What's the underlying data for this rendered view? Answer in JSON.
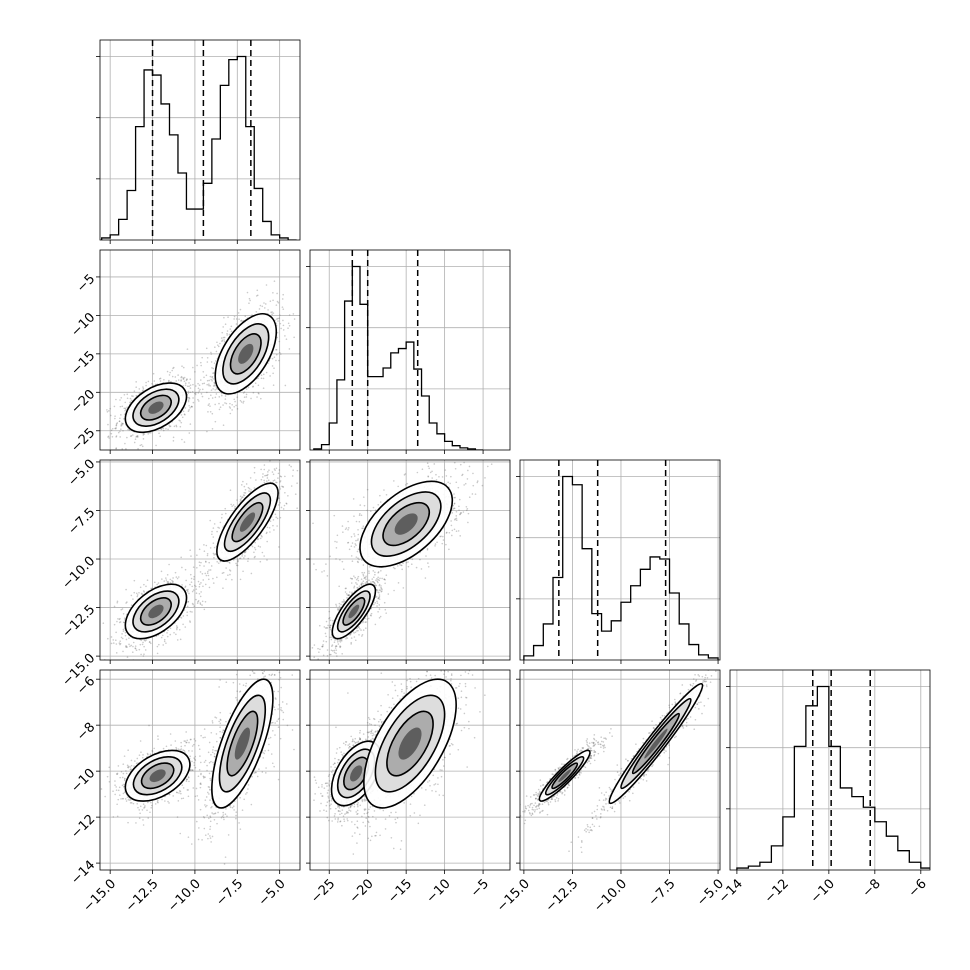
{
  "chart_data": {
    "type": "corner",
    "params": [
      {
        "id": "p0",
        "range": [
          -15.6,
          -3.8
        ],
        "ticks": [
          -15.0,
          -12.5,
          -10.0,
          -7.5,
          -5.0
        ],
        "tick_labels": [
          "−15.0",
          "−12.5",
          "−10.0",
          "−7.5",
          "−5.0"
        ]
      },
      {
        "id": "p1",
        "range": [
          -27.5,
          -1.5
        ],
        "ticks": [
          -25,
          -20,
          -15,
          -10,
          -5
        ],
        "tick_labels": [
          "−25",
          "−20",
          "−15",
          "−10",
          "−5"
        ]
      },
      {
        "id": "p2",
        "range": [
          -15.2,
          -4.9
        ],
        "ticks": [
          -15.0,
          -12.5,
          -10.0,
          -7.5,
          -5.0
        ],
        "tick_labels": [
          "−15.0",
          "−12.5",
          "−10.0",
          "−7.5",
          "−5.0"
        ]
      },
      {
        "id": "p3",
        "range": [
          -14.3,
          -5.6
        ],
        "ticks": [
          -14,
          -12,
          -10,
          -8,
          -6
        ],
        "tick_labels": [
          "−14",
          "−12",
          "−10",
          "−8",
          "−6"
        ]
      }
    ],
    "grid": true,
    "histograms": [
      {
        "param": 0,
        "bin_edges": [
          -15.5,
          -15.0,
          -14.5,
          -14.0,
          -13.5,
          -13.0,
          -12.5,
          -12.0,
          -11.5,
          -11.0,
          -10.5,
          -10.0,
          -9.5,
          -9.0,
          -8.5,
          -8.0,
          -7.5,
          -7.0,
          -6.5,
          -6.0,
          -5.5,
          -5.0,
          -4.5,
          -4.0
        ],
        "counts": [
          2,
          5,
          20,
          48,
          110,
          165,
          160,
          132,
          102,
          65,
          30,
          30,
          55,
          98,
          150,
          175,
          178,
          110,
          50,
          18,
          5,
          2,
          0
        ],
        "quantiles": [
          -12.5,
          -9.5,
          -6.7
        ]
      },
      {
        "param": 1,
        "bin_edges": [
          -27.0,
          -26.0,
          -25.0,
          -24.0,
          -23.0,
          -22.0,
          -21.0,
          -20.0,
          -19.0,
          -18.0,
          -17.0,
          -16.0,
          -15.0,
          -14.0,
          -13.0,
          -12.0,
          -11.0,
          -10.0,
          -9.0,
          -8.0,
          -7.0,
          -6.0,
          -5.0
        ],
        "counts": [
          1,
          5,
          25,
          65,
          138,
          170,
          135,
          68,
          68,
          76,
          90,
          94,
          100,
          75,
          50,
          25,
          15,
          8,
          4,
          2,
          1,
          0
        ],
        "quantiles": [
          -22.0,
          -20.0,
          -13.5
        ]
      },
      {
        "param": 2,
        "bin_edges": [
          -15.0,
          -14.5,
          -14.0,
          -13.5,
          -13.0,
          -12.5,
          -12.0,
          -11.5,
          -11.0,
          -10.5,
          -10.0,
          -9.5,
          -9.0,
          -8.5,
          -8.0,
          -7.5,
          -7.0,
          -6.5,
          -6.0,
          -5.5,
          -5.0
        ],
        "counts": [
          4,
          14,
          35,
          80,
          178,
          170,
          108,
          45,
          28,
          38,
          56,
          72,
          88,
          100,
          98,
          65,
          35,
          15,
          5,
          2
        ],
        "quantiles": [
          -13.2,
          -11.2,
          -7.7
        ]
      },
      {
        "param": 3,
        "bin_edges": [
          -14.0,
          -13.5,
          -13.0,
          -12.5,
          -12.0,
          -11.5,
          -11.0,
          -10.5,
          -10.0,
          -9.5,
          -9.0,
          -8.5,
          -8.0,
          -7.5,
          -7.0,
          -6.5,
          -6.0,
          -5.5
        ],
        "counts": [
          2,
          4,
          8,
          25,
          55,
          128,
          170,
          190,
          128,
          85,
          76,
          65,
          50,
          35,
          20,
          8,
          2
        ],
        "quantiles": [
          -10.7,
          -9.9,
          -8.2
        ]
      }
    ],
    "pairs": [
      {
        "x": 0,
        "y": 1,
        "modes": [
          {
            "c": [
              -12.3,
              -22.0
            ],
            "s": [
              0.9,
              1.6
            ],
            "r": 0.45,
            "w": 0.5
          },
          {
            "c": [
              -7.0,
              -15.0
            ],
            "s": [
              0.9,
              2.6
            ],
            "r": 0.55,
            "w": 0.5
          }
        ]
      },
      {
        "x": 0,
        "y": 2,
        "modes": [
          {
            "c": [
              -12.3,
              -12.7
            ],
            "s": [
              0.9,
              0.7
            ],
            "r": 0.5,
            "w": 0.5
          },
          {
            "c": [
              -6.9,
              -8.1
            ],
            "s": [
              0.9,
              1.0
            ],
            "r": 0.75,
            "w": 0.5
          }
        ]
      },
      {
        "x": 1,
        "y": 2,
        "modes": [
          {
            "c": [
              -21.8,
              -12.7
            ],
            "s": [
              1.4,
              0.7
            ],
            "r": 0.75,
            "w": 0.5
          },
          {
            "c": [
              -15.0,
              -8.2
            ],
            "s": [
              3.0,
              1.1
            ],
            "r": 0.55,
            "w": 0.5
          }
        ]
      },
      {
        "x": 0,
        "y": 3,
        "modes": [
          {
            "c": [
              -12.2,
              -10.2
            ],
            "s": [
              0.95,
              0.55
            ],
            "r": 0.45,
            "w": 0.5
          },
          {
            "c": [
              -7.2,
              -8.8
            ],
            "s": [
              0.9,
              1.4
            ],
            "r": 0.7,
            "w": 0.5
          }
        ]
      },
      {
        "x": 1,
        "y": 3,
        "modes": [
          {
            "c": [
              -21.5,
              -10.1
            ],
            "s": [
              1.6,
              0.7
            ],
            "r": 0.5,
            "w": 0.5
          },
          {
            "c": [
              -14.5,
              -8.8
            ],
            "s": [
              3.0,
              1.4
            ],
            "r": 0.6,
            "w": 0.5
          }
        ]
      },
      {
        "x": 2,
        "y": 3,
        "modes": [
          {
            "c": [
              -12.9,
              -10.2
            ],
            "s": [
              0.65,
              0.55
            ],
            "r": 0.92,
            "w": 0.5
          },
          {
            "c": [
              -8.2,
              -8.8
            ],
            "s": [
              1.2,
              1.3
            ],
            "r": 0.97,
            "w": 0.5
          }
        ]
      }
    ]
  }
}
